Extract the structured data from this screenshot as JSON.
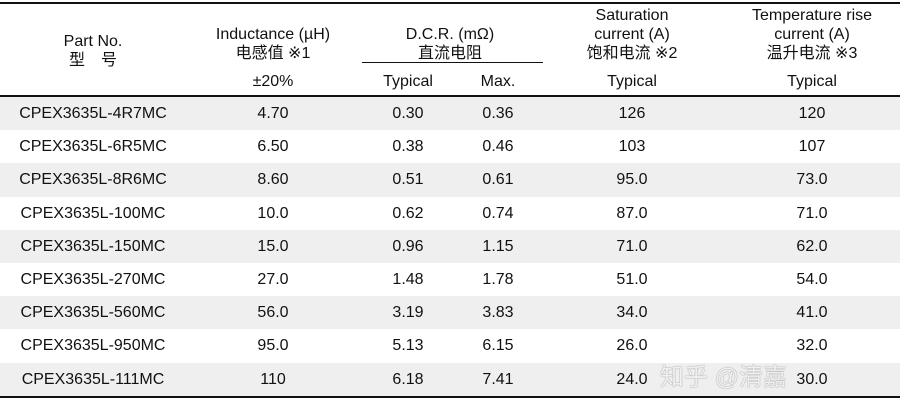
{
  "header": {
    "part": [
      "Part No.",
      "型　号"
    ],
    "inductance": [
      "Inductance (µH)",
      "电感值 ※1"
    ],
    "inductance_tol": "±20%",
    "dcr": [
      "D.C.R. (mΩ)",
      "直流电阻"
    ],
    "dcr_typ": "Typical",
    "dcr_max": "Max.",
    "sat": [
      "Saturation",
      "current (A)",
      "饱和电流 ※2"
    ],
    "sat_typ": "Typical",
    "temp": [
      "Temperature rise",
      "current (A)",
      "温升电流 ※3"
    ],
    "temp_typ": "Typical"
  },
  "rows": [
    [
      "CPEX3635L-4R7MC",
      "4.70",
      "0.30",
      "0.36",
      "126",
      "120"
    ],
    [
      "CPEX3635L-6R5MC",
      "6.50",
      "0.38",
      "0.46",
      "103",
      "107"
    ],
    [
      "CPEX3635L-8R6MC",
      "8.60",
      "0.51",
      "0.61",
      "95.0",
      "73.0"
    ],
    [
      "CPEX3635L-100MC",
      "10.0",
      "0.62",
      "0.74",
      "87.0",
      "71.0"
    ],
    [
      "CPEX3635L-150MC",
      "15.0",
      "0.96",
      "1.15",
      "71.0",
      "62.0"
    ],
    [
      "CPEX3635L-270MC",
      "27.0",
      "1.48",
      "1.78",
      "51.0",
      "54.0"
    ],
    [
      "CPEX3635L-560MC",
      "56.0",
      "3.19",
      "3.83",
      "34.0",
      "41.0"
    ],
    [
      "CPEX3635L-950MC",
      "95.0",
      "5.13",
      "6.15",
      "26.0",
      "32.0"
    ],
    [
      "CPEX3635L-111MC",
      "110",
      "6.18",
      "7.41",
      "24.0",
      "30.0"
    ]
  ],
  "watermark": "知乎 @清嘉"
}
